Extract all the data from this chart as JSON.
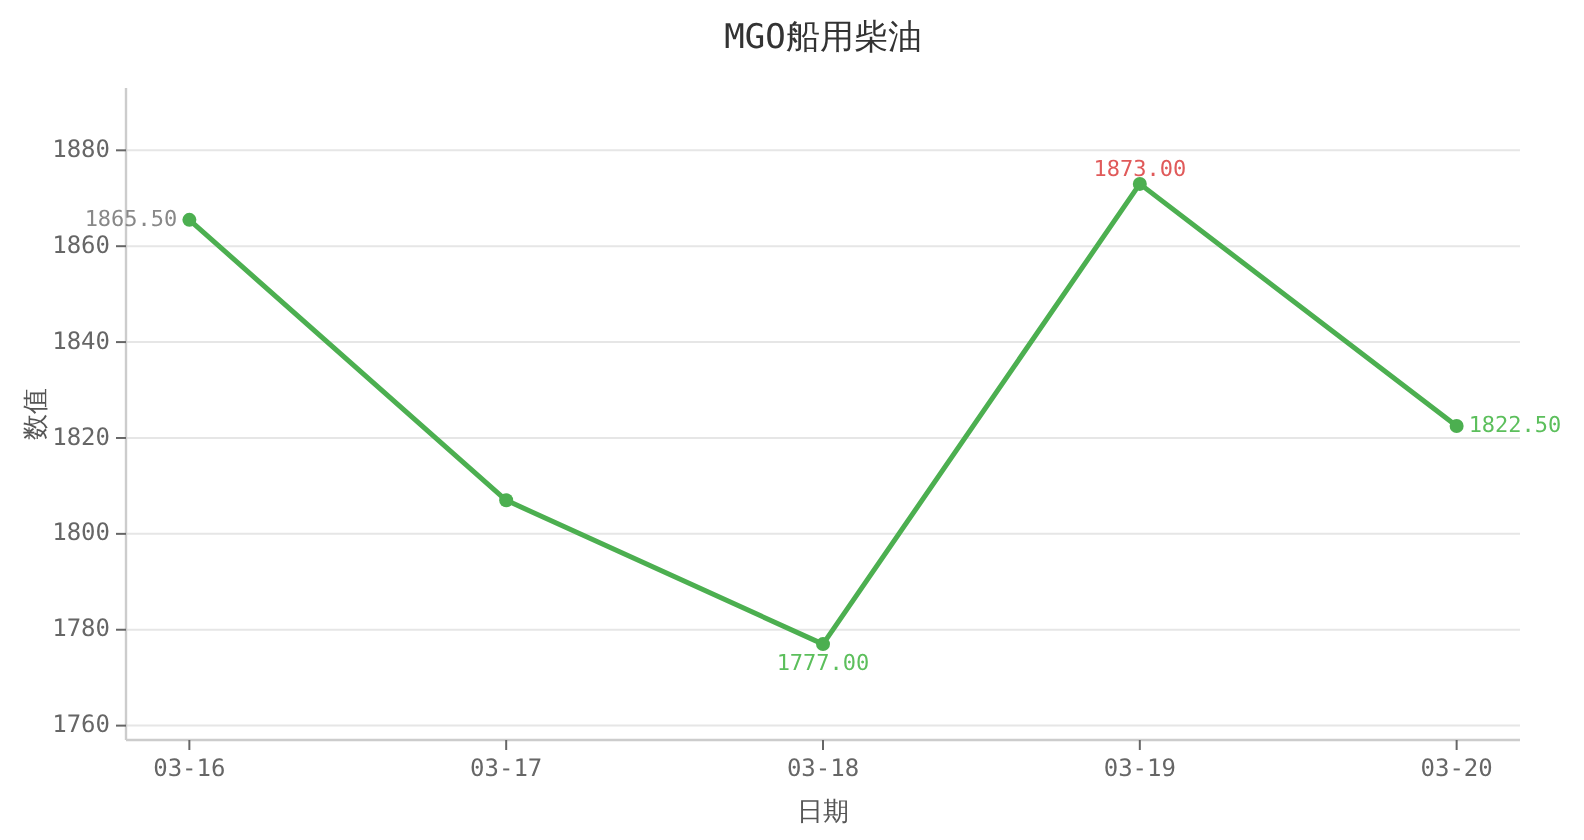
{
  "chart_data": {
    "type": "line",
    "title": "MGO船用柴油",
    "xlabel": "日期",
    "ylabel": "数值",
    "categories": [
      "03-16",
      "03-17",
      "03-18",
      "03-19",
      "03-20"
    ],
    "values": [
      1865.5,
      1807,
      1777,
      1873,
      1822.5
    ],
    "value_labels": [
      "1865.50",
      null,
      "1777.00",
      "1873.00",
      "1822.50"
    ],
    "color": "#4caf50",
    "ylim": [
      1757,
      1893
    ],
    "yticks": [
      1760,
      1780,
      1800,
      1820,
      1840,
      1860,
      1880
    ],
    "grid": "y",
    "marker": "circle",
    "line_style": "solid"
  }
}
